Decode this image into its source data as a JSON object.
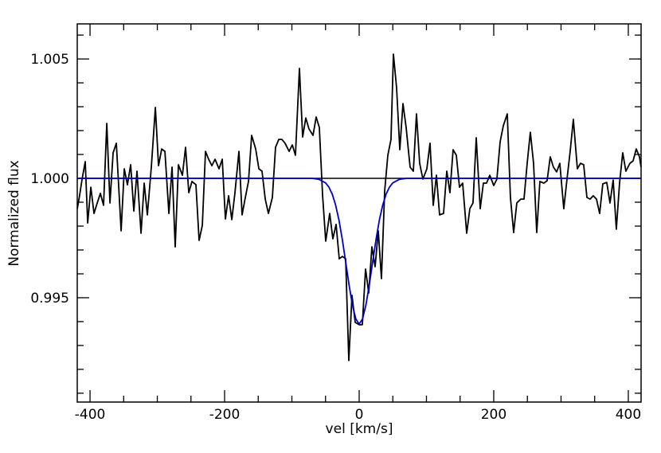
{
  "chart_data": {
    "type": "line",
    "xlabel": "vel [km/s]",
    "ylabel": "Normalized flux",
    "xlim": [
      -419,
      419
    ],
    "ylim": [
      0.99063,
      1.00647
    ],
    "xticks": [
      -400,
      -200,
      0,
      200,
      400
    ],
    "yticks": [
      0.995,
      {
        "value": 1.0,
        "label": "1.000"
      },
      1.005
    ],
    "xminorticks": [
      -350,
      -300,
      -250,
      -150,
      -100,
      -50,
      50,
      100,
      150,
      250,
      300,
      350
    ],
    "yminorticks": [
      0.991,
      0.992,
      0.993,
      0.994,
      0.996,
      0.997,
      0.998,
      0.999,
      1.001,
      1.002,
      1.003,
      1.004,
      1.006
    ],
    "hlines": [
      1.0
    ],
    "hline_color": "#000000",
    "series": [
      {
        "color": "#000000",
        "x": [
          -418.9,
          -415.4,
          -411.8,
          -407.1,
          -403.5,
          -398.8,
          -394.1,
          -389.3,
          -384.6,
          -379.9,
          -375.1,
          -370.4,
          -365.7,
          -360.9,
          -353.8,
          -349.1,
          -344.4,
          -339.6,
          -334.9,
          -330.2,
          -324.2,
          -319.5,
          -314.8,
          -308.9,
          -302.9,
          -298.2,
          -293.5,
          -288.7,
          -282.8,
          -278.1,
          -273.4,
          -268.6,
          -262.7,
          -258.0,
          -253.2,
          -248.5,
          -242.6,
          -237.9,
          -233.1,
          -228.4,
          -223.7,
          -218.9,
          -214.2,
          -208.3,
          -203.5,
          -198.8,
          -194.1,
          -189.3,
          -184.6,
          -178.7,
          -174.0,
          -169.2,
          -164.5,
          -159.8,
          -153.8,
          -149.1,
          -144.4,
          -139.6,
          -134.9,
          -129.0,
          -124.3,
          -119.5,
          -114.8,
          -110.1,
          -104.1,
          -99.4,
          -94.7,
          -88.8,
          -84.0,
          -79.3,
          -74.6,
          -68.6,
          -63.9,
          -59.2,
          -54.4,
          -49.7,
          -43.8,
          -39.1,
          -34.3,
          -29.6,
          -24.9,
          -20.1,
          -15.4,
          -10.7,
          -5.9,
          0,
          4.7,
          9.5,
          14.2,
          18.9,
          23.7,
          28.4,
          33.1,
          37.9,
          42.6,
          47.3,
          50.9,
          55.6,
          60.4,
          65.1,
          69.8,
          75.7,
          80.5,
          85.2,
          89.9,
          94.7,
          100.6,
          105.3,
          110.1,
          114.8,
          119.5,
          125.4,
          130.2,
          134.9,
          139.6,
          144.4,
          149.1,
          153.8,
          159.8,
          164.5,
          169.2,
          174.0,
          179.9,
          184.6,
          189.3,
          194.1,
          200.0,
          204.7,
          209.5,
          214.2,
          220.1,
          224.8,
          229.6,
          234.3,
          240.2,
          245.0,
          249.7,
          254.4,
          259.2,
          263.9,
          268.6,
          274.5,
          279.3,
          284.0,
          288.7,
          293.5,
          298.2,
          304.1,
          308.9,
          313.6,
          318.3,
          324.3,
          329.0,
          333.7,
          338.5,
          343.2,
          347.9,
          352.7,
          357.4,
          362.1,
          368.0,
          372.8,
          377.5,
          382.2,
          387.0,
          391.7,
          396.4,
          402.4,
          407.1,
          411.8,
          416.6,
          418.9
        ],
        "values": [
          0.99873,
          0.9993,
          0.99997,
          1.0007,
          0.99813,
          0.99963,
          0.99853,
          0.99897,
          0.99937,
          0.99887,
          1.0023,
          0.99897,
          1.00107,
          1.00147,
          0.9978,
          1.0004,
          0.99973,
          1.00057,
          0.99863,
          1.0003,
          0.9977,
          0.9998,
          0.99847,
          1.00047,
          1.00297,
          1.00053,
          1.00123,
          1.00113,
          0.99853,
          1.00047,
          0.99713,
          1.00057,
          1.00013,
          1.0013,
          0.9994,
          0.99987,
          0.99973,
          0.9974,
          0.99803,
          1.00113,
          1.0008,
          1.00053,
          1.0008,
          1.0004,
          1.0008,
          0.9983,
          0.99927,
          0.99827,
          0.9994,
          1.00113,
          0.99847,
          0.9992,
          0.99987,
          1.0018,
          1.00123,
          1.0004,
          1.0003,
          0.99913,
          0.99853,
          0.9992,
          1.0013,
          1.00163,
          1.00163,
          1.00147,
          1.00113,
          1.0014,
          1.00097,
          1.0046,
          1.00173,
          1.00253,
          1.00207,
          1.0018,
          1.00257,
          1.00213,
          0.9993,
          0.99737,
          0.99853,
          0.99747,
          0.99807,
          0.99663,
          0.99673,
          0.99663,
          0.99237,
          0.9951,
          0.99397,
          0.99387,
          0.99387,
          0.9962,
          0.9952,
          0.99713,
          0.9963,
          0.9978,
          0.9958,
          0.99947,
          1.00097,
          1.00163,
          1.0052,
          1.0038,
          1.0012,
          1.00313,
          1.00213,
          1.00047,
          1.0003,
          1.0027,
          1.00063,
          0.99997,
          1.0004,
          1.00147,
          0.99887,
          1.00013,
          0.99847,
          0.99853,
          1.0003,
          0.9994,
          1.0012,
          1.00097,
          0.99963,
          0.9998,
          0.9977,
          0.99873,
          0.99897,
          1.0017,
          0.99873,
          0.9998,
          0.9998,
          1.00013,
          0.9997,
          0.99997,
          1.00153,
          1.0022,
          1.0027,
          0.9992,
          0.99773,
          0.99897,
          0.99913,
          0.99913,
          1.00063,
          1.00193,
          1.00063,
          0.99773,
          0.99987,
          0.9998,
          0.9999,
          1.0009,
          1.00047,
          1.00027,
          1.00063,
          0.99873,
          0.99997,
          1.00113,
          1.00247,
          1.0004,
          1.00063,
          1.00057,
          0.9992,
          0.99913,
          0.99927,
          0.99913,
          0.99853,
          0.99977,
          0.99983,
          0.99897,
          0.99993,
          0.99787,
          0.9998,
          1.00107,
          1.0003,
          1.00063,
          1.00073,
          1.00123,
          1.0009,
          1.00047
        ]
      },
      {
        "color": "#0000cc",
        "x": [
          -419,
          -100,
          -70,
          -60,
          -50,
          -45,
          -40,
          -35,
          -30,
          -25,
          -20,
          -15,
          -10,
          -5,
          0,
          5,
          10,
          15,
          20,
          25,
          30,
          35,
          40,
          45,
          50,
          60,
          70,
          100,
          419
        ],
        "values": [
          1.0,
          1.0,
          1.0,
          0.99996,
          0.99981,
          0.99963,
          0.99934,
          0.99888,
          0.99825,
          0.99743,
          0.99649,
          0.99553,
          0.99469,
          0.99411,
          0.9939,
          0.99411,
          0.99469,
          0.99553,
          0.99649,
          0.99743,
          0.99825,
          0.99888,
          0.99934,
          0.99963,
          0.99981,
          0.99996,
          1.0,
          1.0,
          1.0
        ]
      }
    ]
  }
}
